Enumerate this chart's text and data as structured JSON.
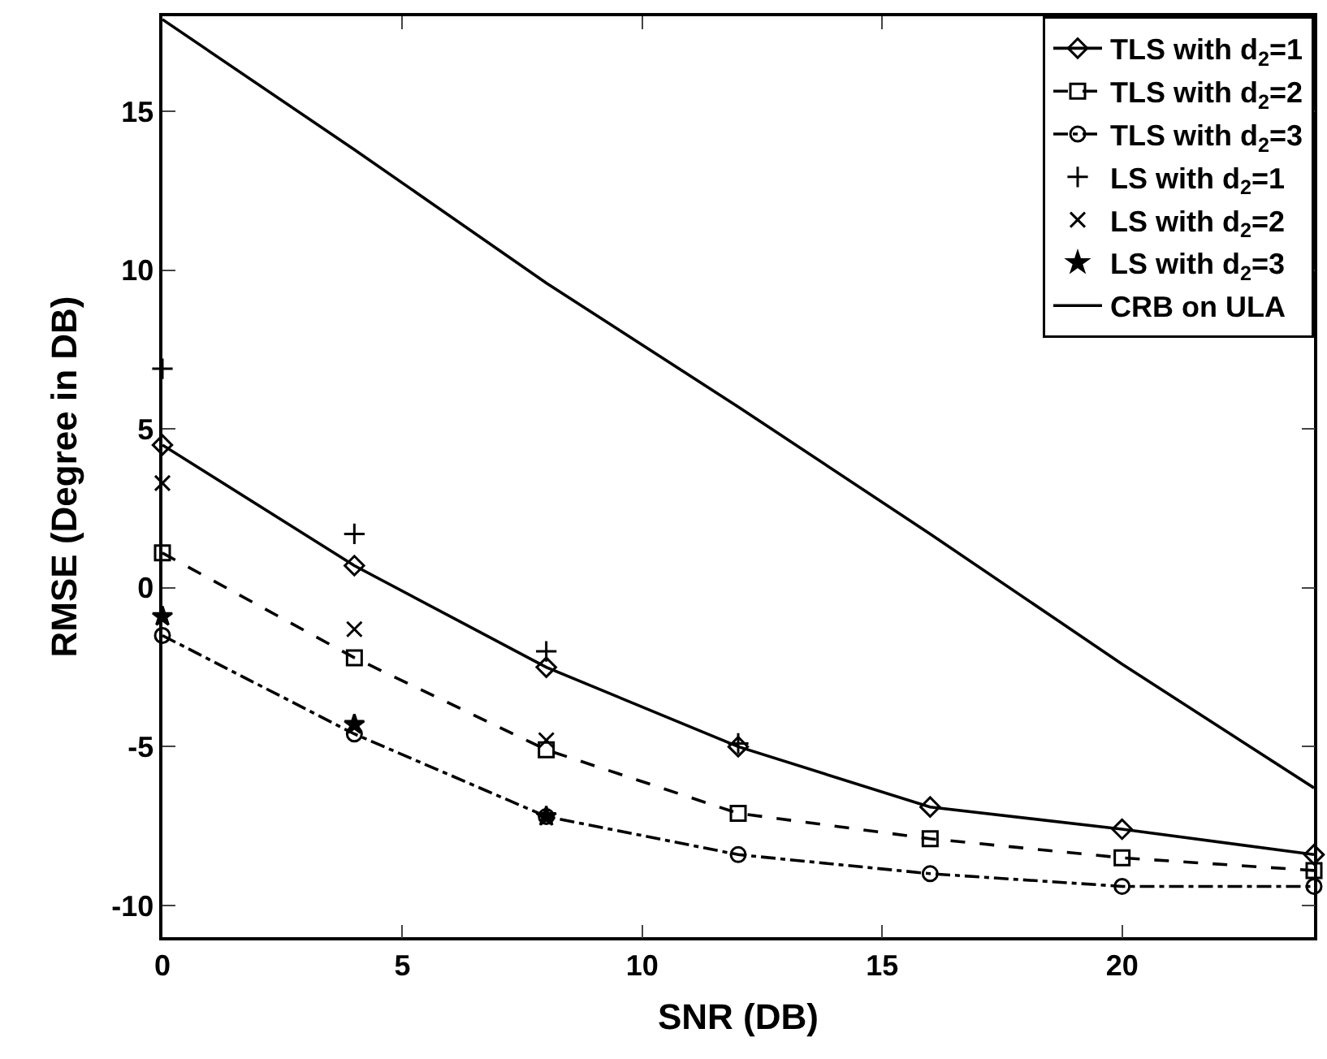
{
  "chart_data": {
    "type": "line",
    "xlabel": "SNR (DB)",
    "ylabel": "RMSE (Degree in DB)",
    "x": [
      0,
      4,
      8,
      12,
      16,
      20,
      24
    ],
    "series": [
      {
        "name": "TLS with d$_{2}$=1",
        "color": "#000000",
        "marker": "diamond",
        "line_style": "solid",
        "values": [
          4.5,
          0.7,
          -2.5,
          -5.0,
          -6.9,
          -7.6,
          -8.4
        ]
      },
      {
        "name": "TLS with d$_{2}$=2",
        "color": "#000000",
        "marker": "square",
        "line_style": "dashed",
        "values": [
          1.1,
          -2.2,
          -5.1,
          -7.1,
          -7.9,
          -8.5,
          -8.9
        ]
      },
      {
        "name": "TLS with d$_{2}$=3",
        "color": "#000000",
        "marker": "circle",
        "line_style": "dashdot",
        "values": [
          -1.5,
          -4.6,
          -7.2,
          -8.4,
          -9.0,
          -9.4,
          -9.4
        ]
      },
      {
        "name": "LS with d$_{2}$=1",
        "type": "scatter",
        "color": "#000000",
        "marker": "cross",
        "values": [
          6.9,
          1.7,
          -2.0,
          -4.9,
          null,
          null,
          null
        ]
      },
      {
        "name": "LS with d$_{2}$=2",
        "type": "scatter",
        "color": "#000000",
        "marker": "x",
        "values": [
          3.3,
          -1.3,
          -4.8,
          null,
          null,
          null,
          null
        ]
      },
      {
        "name": "LS with d$_{2}$=3",
        "type": "scatter",
        "color": "#000000",
        "marker": "star",
        "values": [
          -0.9,
          -4.3,
          -7.2,
          null,
          null,
          null,
          null
        ]
      },
      {
        "name": "CRB on ULA",
        "color": "#000000",
        "marker": "none",
        "line_style": "solid",
        "values": [
          17.9,
          13.8,
          9.6,
          5.7,
          1.7,
          -2.4,
          -6.3
        ]
      }
    ],
    "xlim": [
      0,
      24
    ],
    "xticks": [
      0,
      5,
      10,
      15,
      20
    ],
    "ylim": [
      -11,
      18
    ],
    "yticks": [
      -10,
      -5,
      0,
      5,
      10,
      15
    ],
    "grid": false,
    "legend": "top right"
  }
}
